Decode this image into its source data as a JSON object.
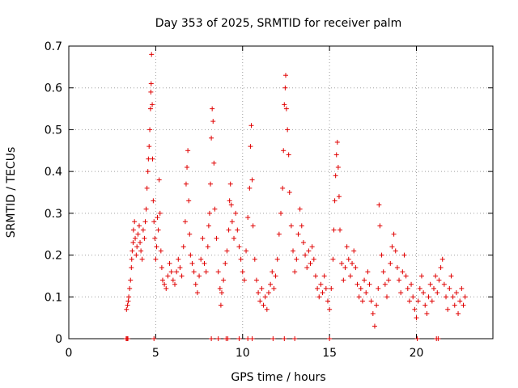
{
  "chart_data": {
    "type": "scatter",
    "title": "Day 353 of 2025, SRMTID for receiver palm",
    "xlabel": "GPS time / hours",
    "ylabel": "SRMTID / TECUs",
    "xlim": [
      0,
      24.4
    ],
    "ylim": [
      0,
      0.7
    ],
    "xticks": [
      0,
      5,
      10,
      15,
      20
    ],
    "yticks": [
      0,
      0.1,
      0.2,
      0.3,
      0.4,
      0.5,
      0.6,
      0.7
    ],
    "xtick_labels": [
      "0",
      "5",
      "10",
      "15",
      "20"
    ],
    "ytick_labels": [
      "0",
      "0.1",
      "0.2",
      "0.3",
      "0.4",
      "0.5",
      "0.6",
      "0.7"
    ],
    "grid": true,
    "marker": "+",
    "color": "#e00000",
    "series": [
      {
        "name": "SRMTID",
        "points": [
          [
            3.3,
            0.0
          ],
          [
            3.35,
            0.0
          ],
          [
            3.4,
            0.0
          ],
          [
            3.32,
            0.07
          ],
          [
            3.38,
            0.08
          ],
          [
            3.42,
            0.09
          ],
          [
            3.45,
            0.1
          ],
          [
            3.5,
            0.12
          ],
          [
            3.55,
            0.14
          ],
          [
            3.6,
            0.17
          ],
          [
            3.62,
            0.19
          ],
          [
            3.65,
            0.21
          ],
          [
            3.7,
            0.23
          ],
          [
            3.72,
            0.26
          ],
          [
            3.78,
            0.28
          ],
          [
            3.82,
            0.24
          ],
          [
            3.88,
            0.2
          ],
          [
            3.92,
            0.22
          ],
          [
            3.98,
            0.25
          ],
          [
            4.05,
            0.27
          ],
          [
            4.1,
            0.23
          ],
          [
            4.15,
            0.21
          ],
          [
            4.22,
            0.19
          ],
          [
            4.28,
            0.26
          ],
          [
            4.35,
            0.24
          ],
          [
            4.4,
            0.28
          ],
          [
            4.45,
            0.31
          ],
          [
            4.5,
            0.36
          ],
          [
            4.55,
            0.4
          ],
          [
            4.58,
            0.43
          ],
          [
            4.62,
            0.46
          ],
          [
            4.66,
            0.5
          ],
          [
            4.7,
            0.55
          ],
          [
            4.72,
            0.59
          ],
          [
            4.74,
            0.61
          ],
          [
            4.76,
            0.68
          ],
          [
            4.8,
            0.56
          ],
          [
            4.82,
            0.43
          ],
          [
            4.86,
            0.33
          ],
          [
            4.9,
            0.28
          ],
          [
            4.95,
            0.24
          ],
          [
            5.0,
            0.19
          ],
          [
            5.05,
            0.22
          ],
          [
            5.1,
            0.29
          ],
          [
            5.15,
            0.26
          ],
          [
            5.2,
            0.38
          ],
          [
            5.25,
            0.3
          ],
          [
            5.3,
            0.21
          ],
          [
            5.35,
            0.17
          ],
          [
            5.4,
            0.14
          ],
          [
            5.5,
            0.13
          ],
          [
            5.6,
            0.12
          ],
          [
            5.7,
            0.15
          ],
          [
            5.8,
            0.18
          ],
          [
            5.9,
            0.16
          ],
          [
            6.0,
            0.14
          ],
          [
            6.1,
            0.13
          ],
          [
            6.2,
            0.16
          ],
          [
            6.3,
            0.19
          ],
          [
            6.4,
            0.17
          ],
          [
            6.5,
            0.15
          ],
          [
            6.6,
            0.22
          ],
          [
            6.7,
            0.28
          ],
          [
            6.75,
            0.37
          ],
          [
            6.8,
            0.41
          ],
          [
            6.85,
            0.45
          ],
          [
            6.9,
            0.33
          ],
          [
            6.95,
            0.25
          ],
          [
            7.0,
            0.2
          ],
          [
            7.1,
            0.18
          ],
          [
            7.2,
            0.16
          ],
          [
            7.3,
            0.13
          ],
          [
            7.4,
            0.11
          ],
          [
            7.5,
            0.15
          ],
          [
            7.6,
            0.19
          ],
          [
            7.7,
            0.24
          ],
          [
            7.8,
            0.18
          ],
          [
            7.9,
            0.16
          ],
          [
            8.0,
            0.22
          ],
          [
            8.05,
            0.27
          ],
          [
            8.1,
            0.3
          ],
          [
            8.15,
            0.37
          ],
          [
            8.2,
            0.48
          ],
          [
            8.25,
            0.55
          ],
          [
            8.3,
            0.52
          ],
          [
            8.35,
            0.42
          ],
          [
            8.4,
            0.31
          ],
          [
            8.5,
            0.24
          ],
          [
            8.6,
            0.16
          ],
          [
            8.7,
            0.12
          ],
          [
            8.75,
            0.08
          ],
          [
            8.8,
            0.11
          ],
          [
            8.9,
            0.14
          ],
          [
            9.0,
            0.18
          ],
          [
            9.1,
            0.21
          ],
          [
            9.2,
            0.26
          ],
          [
            9.25,
            0.33
          ],
          [
            9.3,
            0.37
          ],
          [
            9.35,
            0.32
          ],
          [
            9.4,
            0.28
          ],
          [
            9.5,
            0.24
          ],
          [
            9.6,
            0.3
          ],
          [
            9.7,
            0.26
          ],
          [
            9.8,
            0.22
          ],
          [
            9.9,
            0.19
          ],
          [
            10.0,
            0.16
          ],
          [
            10.1,
            0.14
          ],
          [
            10.2,
            0.21
          ],
          [
            10.3,
            0.29
          ],
          [
            10.4,
            0.36
          ],
          [
            10.45,
            0.46
          ],
          [
            10.5,
            0.51
          ],
          [
            10.55,
            0.38
          ],
          [
            10.6,
            0.27
          ],
          [
            10.7,
            0.19
          ],
          [
            10.8,
            0.14
          ],
          [
            10.9,
            0.11
          ],
          [
            11.0,
            0.09
          ],
          [
            11.1,
            0.12
          ],
          [
            11.2,
            0.08
          ],
          [
            11.3,
            0.1
          ],
          [
            11.4,
            0.07
          ],
          [
            11.5,
            0.11
          ],
          [
            11.6,
            0.13
          ],
          [
            11.7,
            0.16
          ],
          [
            11.8,
            0.12
          ],
          [
            11.9,
            0.15
          ],
          [
            12.0,
            0.19
          ],
          [
            12.1,
            0.25
          ],
          [
            12.2,
            0.3
          ],
          [
            12.3,
            0.36
          ],
          [
            12.35,
            0.45
          ],
          [
            12.4,
            0.56
          ],
          [
            12.45,
            0.6
          ],
          [
            12.48,
            0.63
          ],
          [
            12.52,
            0.55
          ],
          [
            12.58,
            0.5
          ],
          [
            12.65,
            0.44
          ],
          [
            12.7,
            0.35
          ],
          [
            12.8,
            0.27
          ],
          [
            12.9,
            0.21
          ],
          [
            13.0,
            0.16
          ],
          [
            13.1,
            0.19
          ],
          [
            13.2,
            0.25
          ],
          [
            13.3,
            0.31
          ],
          [
            13.4,
            0.27
          ],
          [
            13.5,
            0.23
          ],
          [
            13.6,
            0.2
          ],
          [
            13.7,
            0.17
          ],
          [
            13.8,
            0.21
          ],
          [
            13.9,
            0.18
          ],
          [
            14.0,
            0.22
          ],
          [
            14.1,
            0.19
          ],
          [
            14.2,
            0.15
          ],
          [
            14.3,
            0.12
          ],
          [
            14.4,
            0.1
          ],
          [
            14.5,
            0.13
          ],
          [
            14.6,
            0.11
          ],
          [
            14.7,
            0.15
          ],
          [
            14.8,
            0.12
          ],
          [
            14.9,
            0.09
          ],
          [
            15.0,
            0.07
          ],
          [
            15.1,
            0.12
          ],
          [
            15.2,
            0.19
          ],
          [
            15.25,
            0.26
          ],
          [
            15.3,
            0.33
          ],
          [
            15.35,
            0.39
          ],
          [
            15.4,
            0.44
          ],
          [
            15.45,
            0.47
          ],
          [
            15.5,
            0.41
          ],
          [
            15.55,
            0.34
          ],
          [
            15.6,
            0.26
          ],
          [
            15.7,
            0.18
          ],
          [
            15.8,
            0.14
          ],
          [
            15.9,
            0.17
          ],
          [
            16.0,
            0.22
          ],
          [
            16.1,
            0.19
          ],
          [
            16.2,
            0.15
          ],
          [
            16.3,
            0.18
          ],
          [
            16.4,
            0.21
          ],
          [
            16.5,
            0.17
          ],
          [
            16.6,
            0.13
          ],
          [
            16.7,
            0.1
          ],
          [
            16.8,
            0.12
          ],
          [
            16.9,
            0.09
          ],
          [
            17.0,
            0.14
          ],
          [
            17.1,
            0.11
          ],
          [
            17.2,
            0.16
          ],
          [
            17.3,
            0.13
          ],
          [
            17.4,
            0.09
          ],
          [
            17.5,
            0.06
          ],
          [
            17.6,
            0.03
          ],
          [
            17.7,
            0.08
          ],
          [
            17.8,
            0.12
          ],
          [
            17.85,
            0.32
          ],
          [
            17.9,
            0.27
          ],
          [
            18.0,
            0.2
          ],
          [
            18.1,
            0.16
          ],
          [
            18.2,
            0.13
          ],
          [
            18.3,
            0.1
          ],
          [
            18.4,
            0.14
          ],
          [
            18.5,
            0.18
          ],
          [
            18.6,
            0.22
          ],
          [
            18.7,
            0.25
          ],
          [
            18.8,
            0.21
          ],
          [
            18.9,
            0.17
          ],
          [
            19.0,
            0.14
          ],
          [
            19.1,
            0.11
          ],
          [
            19.2,
            0.16
          ],
          [
            19.3,
            0.2
          ],
          [
            19.4,
            0.15
          ],
          [
            19.5,
            0.12
          ],
          [
            19.6,
            0.09
          ],
          [
            19.7,
            0.13
          ],
          [
            19.8,
            0.1
          ],
          [
            19.9,
            0.07
          ],
          [
            20.0,
            0.05
          ],
          [
            20.1,
            0.09
          ],
          [
            20.2,
            0.12
          ],
          [
            20.3,
            0.15
          ],
          [
            20.4,
            0.11
          ],
          [
            20.5,
            0.08
          ],
          [
            20.6,
            0.06
          ],
          [
            20.7,
            0.1
          ],
          [
            20.8,
            0.13
          ],
          [
            20.9,
            0.09
          ],
          [
            21.0,
            0.12
          ],
          [
            21.1,
            0.15
          ],
          [
            21.2,
            0.11
          ],
          [
            21.3,
            0.14
          ],
          [
            21.4,
            0.17
          ],
          [
            21.5,
            0.19
          ],
          [
            21.6,
            0.13
          ],
          [
            21.7,
            0.1
          ],
          [
            21.8,
            0.07
          ],
          [
            21.9,
            0.12
          ],
          [
            22.0,
            0.15
          ],
          [
            22.1,
            0.1
          ],
          [
            22.2,
            0.08
          ],
          [
            22.3,
            0.11
          ],
          [
            22.4,
            0.06
          ],
          [
            22.5,
            0.09
          ],
          [
            22.6,
            0.12
          ],
          [
            22.7,
            0.08
          ],
          [
            22.8,
            0.1
          ],
          [
            21.15,
            0.0
          ],
          [
            21.25,
            0.0
          ],
          [
            9.05,
            0.0
          ],
          [
            9.15,
            0.0
          ],
          [
            10.3,
            0.0
          ],
          [
            11.75,
            0.0
          ],
          [
            12.4,
            0.0
          ],
          [
            13.0,
            0.0
          ],
          [
            15.0,
            0.0
          ],
          [
            20.05,
            0.0
          ],
          [
            4.9,
            0.0
          ],
          [
            8.2,
            0.0
          ],
          [
            8.6,
            0.0
          ],
          [
            9.8,
            0.0
          ],
          [
            10.55,
            0.0
          ]
        ]
      }
    ]
  }
}
